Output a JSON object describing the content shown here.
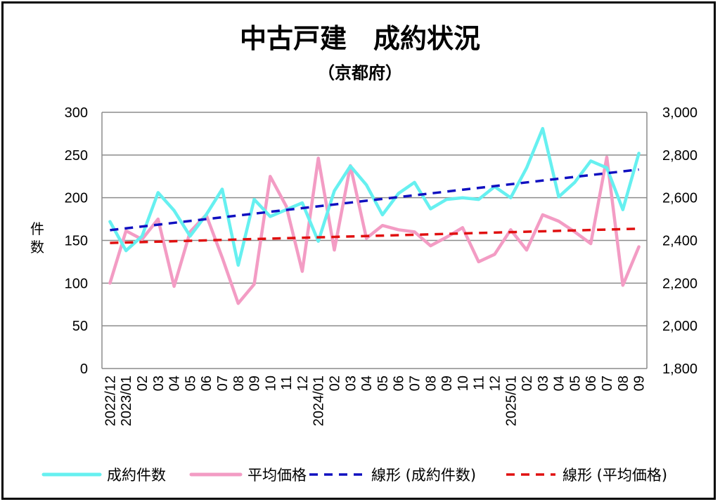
{
  "chart_data": {
    "type": "line",
    "title": "中古戸建　成約状況",
    "subtitle": "（京都府）",
    "ylabel_left": "件数",
    "ylim_left": [
      0,
      300
    ],
    "yticks_left": [
      "0",
      "50",
      "100",
      "150",
      "200",
      "250",
      "300"
    ],
    "ylim_right": [
      1800,
      3000
    ],
    "yticks_right": [
      "1,800",
      "2,000",
      "2,200",
      "2,400",
      "2,600",
      "2,800",
      "3,000"
    ],
    "x_tick_labels": [
      "2022/12",
      "2023/01",
      "02",
      "03",
      "04",
      "05",
      "06",
      "07",
      "08",
      "09",
      "10",
      "11",
      "12",
      "2024/01",
      "02",
      "03",
      "04",
      "05",
      "06",
      "07",
      "08",
      "09",
      "10",
      "11",
      "12",
      "2025/01",
      "02",
      "03",
      "04",
      "05",
      "06",
      "07",
      "08",
      "09"
    ],
    "grid": true,
    "legend_position": "bottom",
    "series": [
      {
        "name": "成約件数",
        "axis": "left",
        "color": "#66f0f0",
        "values": [
          172,
          138,
          155,
          206,
          185,
          155,
          180,
          210,
          121,
          198,
          178,
          186,
          194,
          149,
          208,
          237,
          215,
          180,
          205,
          218,
          187,
          198,
          200,
          198,
          213,
          200,
          235,
          281,
          201,
          218,
          243,
          235,
          186,
          252
        ]
      },
      {
        "name": "平均価格",
        "axis": "right",
        "color": "#f39cc4",
        "values": [
          2200,
          2445,
          2405,
          2500,
          2185,
          2440,
          2520,
          2320,
          2105,
          2195,
          2700,
          2560,
          2255,
          2785,
          2355,
          2750,
          2410,
          2470,
          2450,
          2440,
          2375,
          2415,
          2460,
          2300,
          2335,
          2450,
          2355,
          2520,
          2490,
          2440,
          2385,
          2790,
          2190,
          2370
        ]
      },
      {
        "name": "線形 (成約件数)",
        "axis": "left",
        "color": "#1010c0",
        "dashed": true,
        "values": [
          162,
          233
        ]
      },
      {
        "name": "線形 (平均価格)",
        "axis": "right",
        "color": "#e01010",
        "dashed": true,
        "values": [
          2388,
          2455
        ]
      }
    ]
  }
}
